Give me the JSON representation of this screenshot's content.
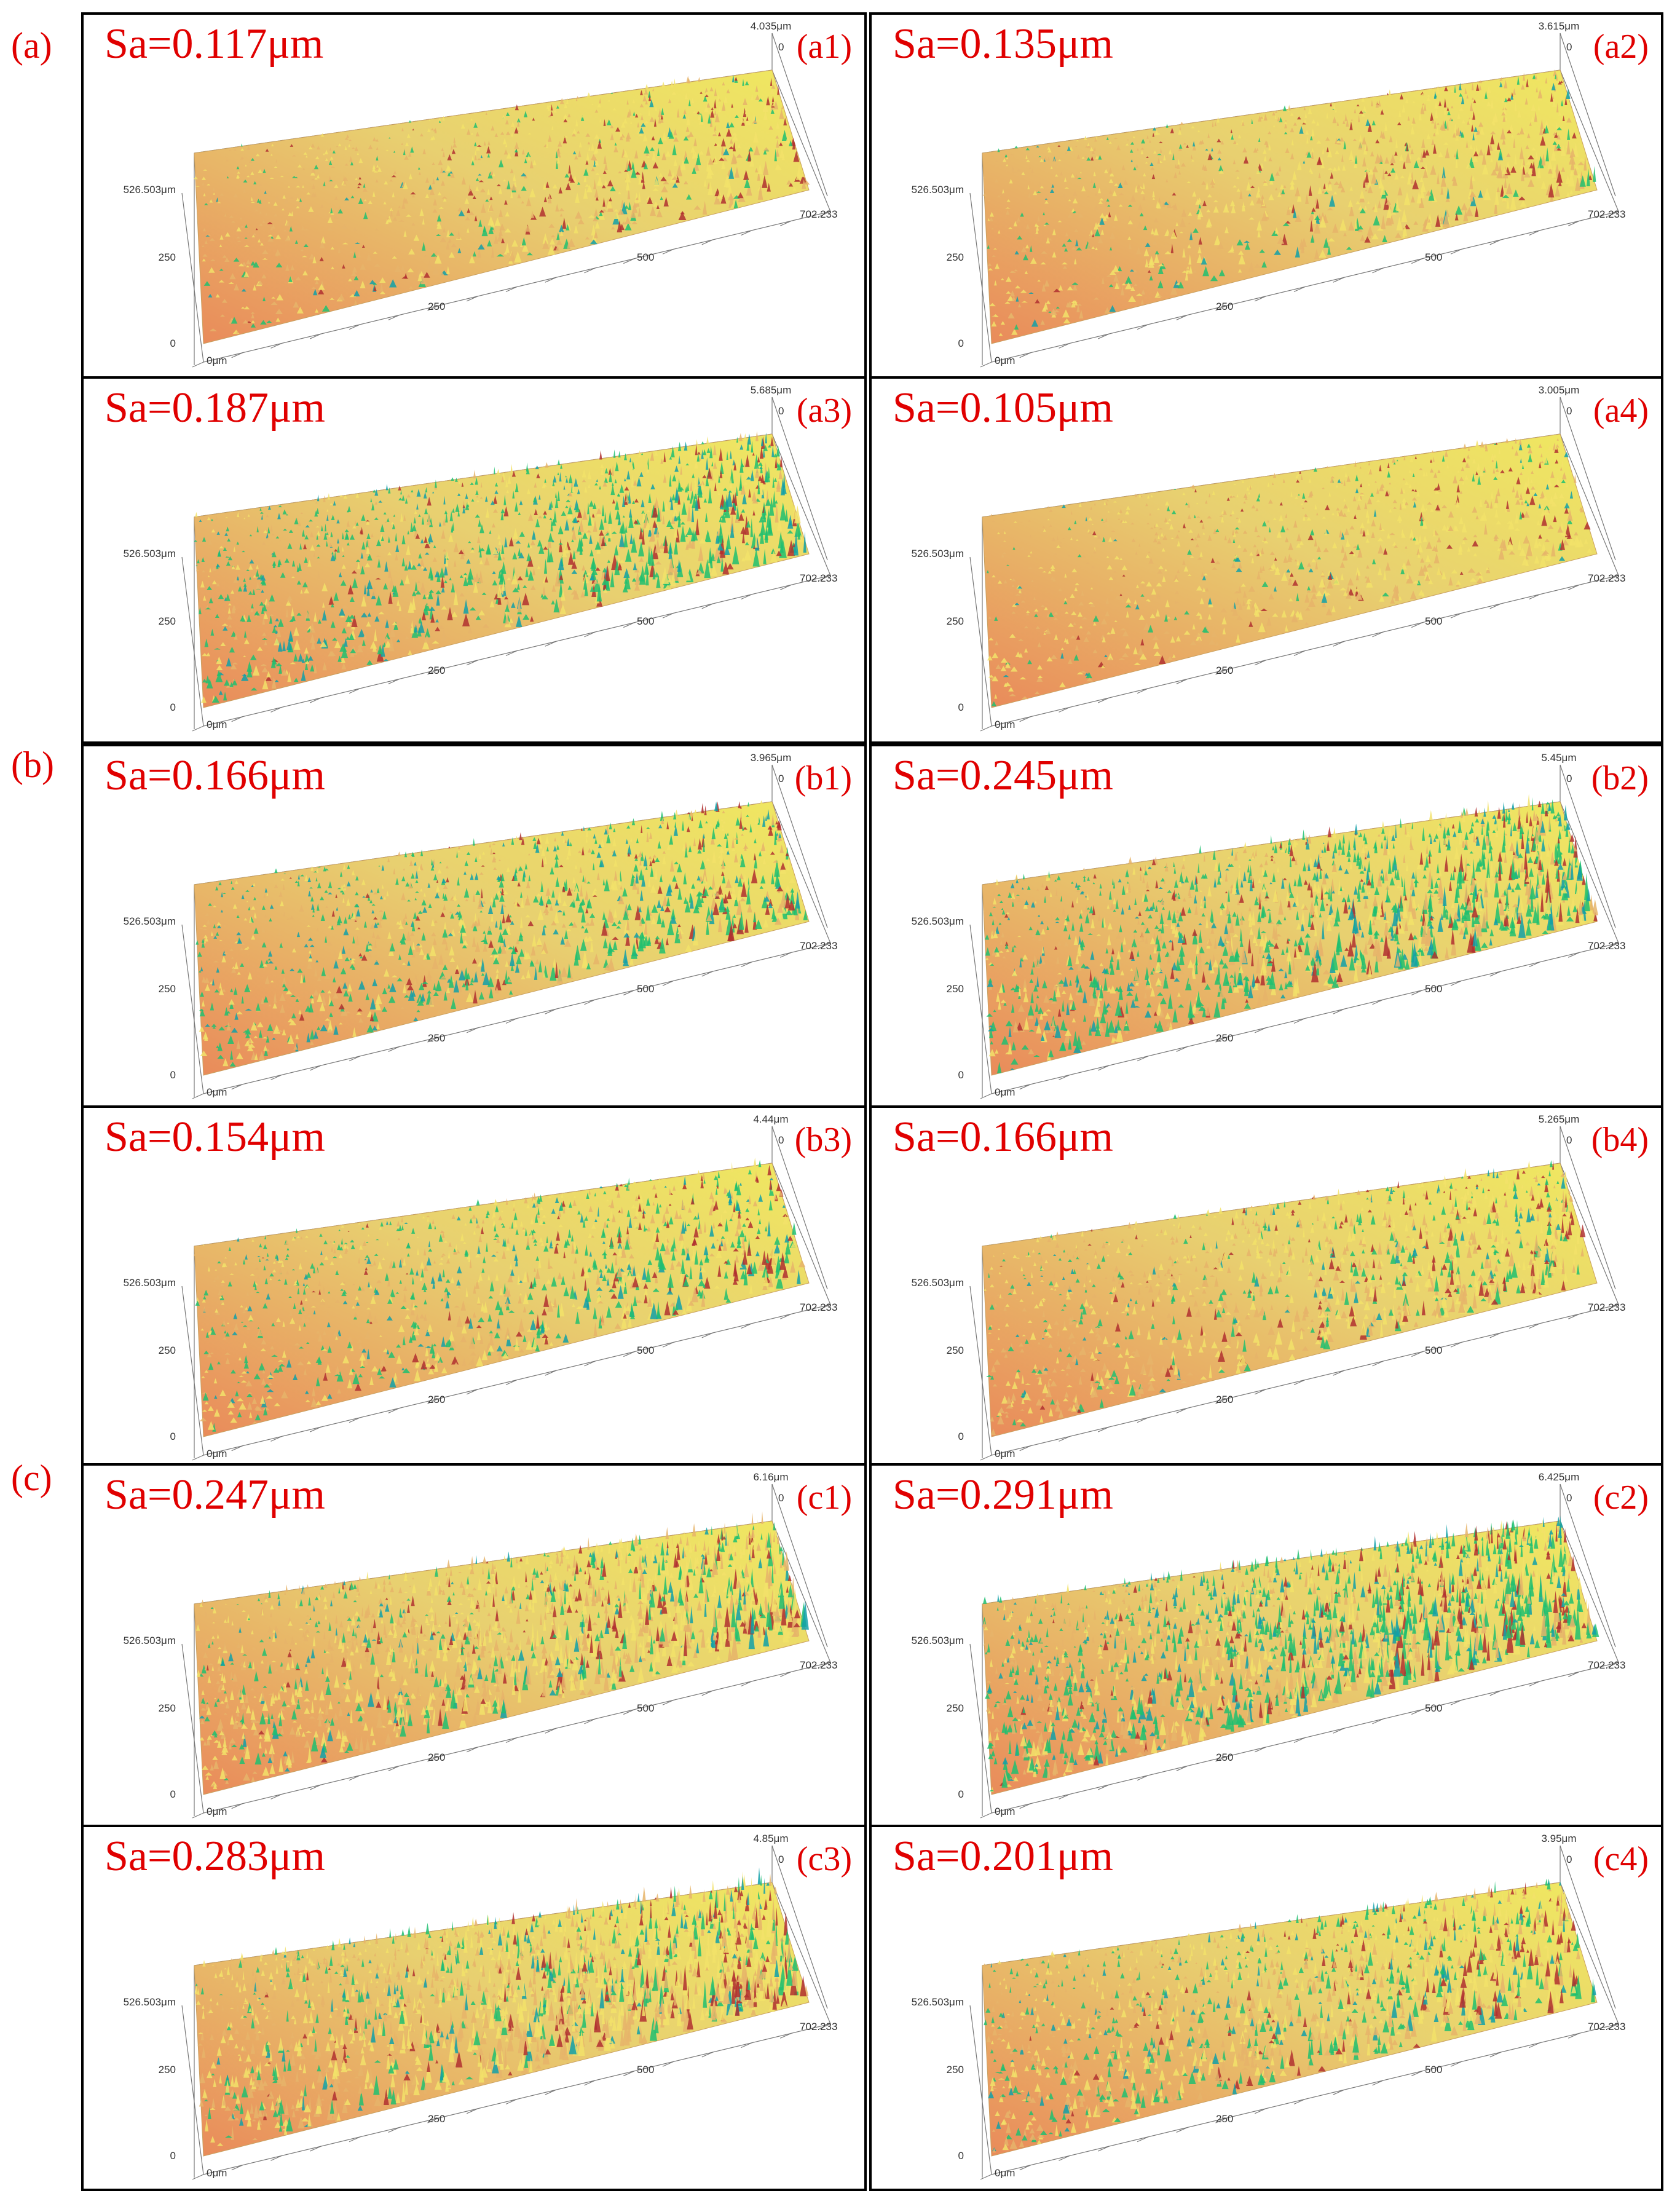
{
  "groups": [
    {
      "label": "(a)"
    },
    {
      "label": "(b)"
    },
    {
      "label": "(c)"
    }
  ],
  "panels": [
    {
      "id": "(a1)",
      "sa": "Sa=0.117μm",
      "zmax": "4.035μm",
      "y_label": "526.503μm",
      "y_mid": "250",
      "y_zero": "0",
      "x_zero": "0μm",
      "x_ticks": [
        "250",
        "500"
      ],
      "x_end": "702.233",
      "z_zero": "0",
      "roughness": 0.117,
      "green_level": 0.25
    },
    {
      "id": "(a2)",
      "sa": "Sa=0.135μm",
      "zmax": "3.615μm",
      "y_label": "526.503μm",
      "y_mid": "250",
      "y_zero": "0",
      "x_zero": "0μm",
      "x_ticks": [
        "250",
        "500"
      ],
      "x_end": "702.233",
      "z_zero": "0",
      "roughness": 0.135,
      "green_level": 0.2
    },
    {
      "id": "(a3)",
      "sa": "Sa=0.187μm",
      "zmax": "5.685μm",
      "y_label": "526.503μm",
      "y_mid": "250",
      "y_zero": "0",
      "x_zero": "0μm",
      "x_ticks": [
        "250",
        "500"
      ],
      "x_end": "702.233",
      "z_zero": "0",
      "roughness": 0.187,
      "green_level": 0.75
    },
    {
      "id": "(a4)",
      "sa": "Sa=0.105μm",
      "zmax": "3.005μm",
      "y_label": "526.503μm",
      "y_mid": "250",
      "y_zero": "0",
      "x_zero": "0μm",
      "x_ticks": [
        "250",
        "500"
      ],
      "x_end": "702.233",
      "z_zero": "0",
      "roughness": 0.105,
      "green_level": 0.15
    },
    {
      "id": "(b1)",
      "sa": "Sa=0.166μm",
      "zmax": "3.965μm",
      "y_label": "526.503μm",
      "y_mid": "250",
      "y_zero": "0",
      "x_zero": "0μm",
      "x_ticks": [
        "250",
        "500"
      ],
      "x_end": "702.233",
      "z_zero": "0",
      "roughness": 0.166,
      "green_level": 0.6
    },
    {
      "id": "(b2)",
      "sa": "Sa=0.245μm",
      "zmax": "5.45μm",
      "y_label": "526.503μm",
      "y_mid": "250",
      "y_zero": "0",
      "x_zero": "0μm",
      "x_ticks": [
        "250",
        "500"
      ],
      "x_end": "702.233",
      "z_zero": "0",
      "roughness": 0.245,
      "green_level": 0.7
    },
    {
      "id": "(b3)",
      "sa": "Sa=0.154μm",
      "zmax": "4.44μm",
      "y_label": "526.503μm",
      "y_mid": "250",
      "y_zero": "0",
      "x_zero": "0μm",
      "x_ticks": [
        "250",
        "500"
      ],
      "x_end": "702.233",
      "z_zero": "0",
      "roughness": 0.154,
      "green_level": 0.55
    },
    {
      "id": "(b4)",
      "sa": "Sa=0.166μm",
      "zmax": "5.265μm",
      "y_label": "526.503μm",
      "y_mid": "250",
      "y_zero": "0",
      "x_zero": "0μm",
      "x_ticks": [
        "250",
        "500"
      ],
      "x_end": "702.233",
      "z_zero": "0",
      "roughness": 0.166,
      "green_level": 0.3
    },
    {
      "id": "(c1)",
      "sa": "Sa=0.247μm",
      "zmax": "6.16μm",
      "y_label": "526.503μm",
      "y_mid": "250",
      "y_zero": "0",
      "x_zero": "0μm",
      "x_ticks": [
        "250",
        "500"
      ],
      "x_end": "702.233",
      "z_zero": "0",
      "roughness": 0.247,
      "green_level": 0.3
    },
    {
      "id": "(c2)",
      "sa": "Sa=0.291μm",
      "zmax": "6.425μm",
      "y_label": "526.503μm",
      "y_mid": "250",
      "y_zero": "0",
      "x_zero": "0μm",
      "x_ticks": [
        "250",
        "500"
      ],
      "x_end": "702.233",
      "z_zero": "0",
      "roughness": 0.291,
      "green_level": 0.65
    },
    {
      "id": "(c3)",
      "sa": "Sa=0.283μm",
      "zmax": "4.85μm",
      "y_label": "526.503μm",
      "y_mid": "250",
      "y_zero": "0",
      "x_zero": "0μm",
      "x_ticks": [
        "250",
        "500"
      ],
      "x_end": "702.233",
      "z_zero": "0",
      "roughness": 0.283,
      "green_level": 0.3
    },
    {
      "id": "(c4)",
      "sa": "Sa=0.201μm",
      "zmax": "3.95μm",
      "y_label": "526.503μm",
      "y_mid": "250",
      "y_zero": "0",
      "x_zero": "0μm",
      "x_ticks": [
        "250",
        "500"
      ],
      "x_end": "702.233",
      "z_zero": "0",
      "roughness": 0.201,
      "green_level": 0.45
    }
  ],
  "colors": {
    "label_red": "#e00000",
    "surface_low": "#e98a5a",
    "surface_mid": "#e8d070",
    "surface_high": "#f0e860",
    "peak_green": "#20c070",
    "peak_cyan": "#10a0a8",
    "peak_red": "#b03030"
  }
}
